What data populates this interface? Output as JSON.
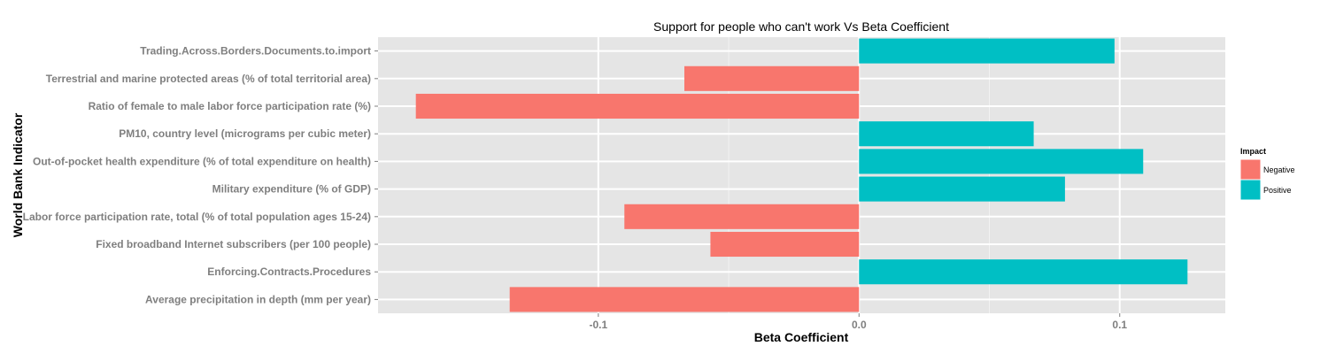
{
  "chart_data": {
    "type": "bar",
    "orientation": "horizontal",
    "title": "Support for people who can't work Vs Beta Coefficient",
    "xlabel": "Beta Coefficient",
    "ylabel": "World Bank Indicator",
    "xlim": [
      -0.1845,
      0.1405
    ],
    "xticks": [
      -0.1,
      0.0,
      0.1
    ],
    "xtick_labels": [
      "-0.1",
      "0.0",
      "0.1"
    ],
    "grid": true,
    "categories": [
      "Trading.Across.Borders.Documents.to.import",
      "Terrestrial and marine protected areas (% of total territorial area)",
      "Ratio of female to male labor force participation rate (%)",
      "PM10, country level (micrograms per cubic meter)",
      "Out-of-pocket health expenditure (% of total expenditure on health)",
      "Military expenditure (% of GDP)",
      "Labor force participation rate, total (% of total population ages 15-24)",
      "Fixed broadband Internet subscribers (per 100 people)",
      "Enforcing.Contracts.Procedures",
      "Average precipitation in depth (mm per year)"
    ],
    "values": [
      0.098,
      -0.067,
      -0.17,
      0.067,
      0.109,
      0.079,
      -0.09,
      -0.057,
      0.126,
      -0.134
    ],
    "impact": [
      "Positive",
      "Negative",
      "Negative",
      "Positive",
      "Positive",
      "Positive",
      "Negative",
      "Negative",
      "Positive",
      "Negative"
    ],
    "legend": {
      "title": "Impact",
      "position": "right",
      "entries": [
        {
          "label": "Negative",
          "color": "#F8766D"
        },
        {
          "label": "Positive",
          "color": "#00BFC4"
        }
      ]
    },
    "colors": {
      "panel": "#E5E5E5",
      "grid_major": "#FFFFFF",
      "grid_minor": "#F2F2F2",
      "Negative": "#F8766D",
      "Positive": "#00BFC4"
    }
  }
}
